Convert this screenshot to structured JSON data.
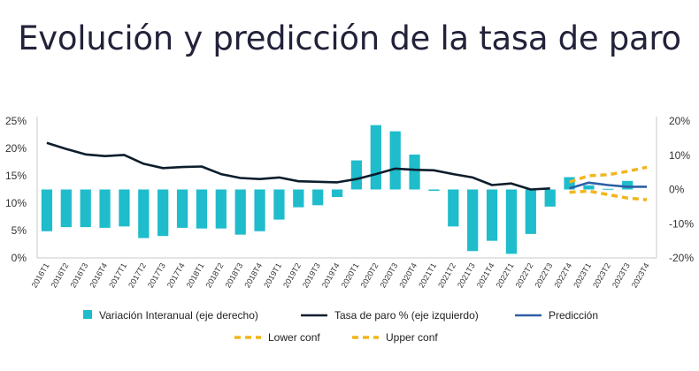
{
  "chart_data": {
    "type": "bar",
    "title": "Evolución y predicción de la tasa de paro",
    "categories": [
      "2016T1",
      "2016T2",
      "2016T3",
      "2016T4",
      "2017T1",
      "2017T2",
      "2017T3",
      "2017T4",
      "2018T1",
      "2018T2",
      "2018T3",
      "2018T4",
      "2019T1",
      "2019T2",
      "2019T3",
      "2019T4",
      "2020T1",
      "2020T2",
      "2020T3",
      "2020T4",
      "2021T1",
      "2021T2",
      "2021T3",
      "2021T4",
      "2022T1",
      "2022T2",
      "2022T3",
      "2022T4",
      "2023T1",
      "2023T2",
      "2023T3",
      "2023T4"
    ],
    "y_left": {
      "range": [
        0,
        25
      ],
      "ticks": [
        "0%",
        "5%",
        "10%",
        "15%",
        "20%",
        "25%"
      ]
    },
    "y_right": {
      "range": [
        -20,
        20
      ],
      "ticks": [
        "-20%",
        "-10%",
        "0%",
        "10%",
        "20%"
      ]
    },
    "series": [
      {
        "name": "Variación Interanual (eje derecho)",
        "type": "bar",
        "axis": "right",
        "color": "#1fbccc",
        "values": [
          -12.2,
          -11.0,
          -11.0,
          -11.2,
          -10.8,
          -14.2,
          -13.6,
          -11.2,
          -11.4,
          -11.4,
          -13.2,
          -12.2,
          -8.8,
          -5.2,
          -4.6,
          -2.2,
          8.5,
          18.8,
          17.0,
          10.2,
          -0.4,
          -10.8,
          -18.0,
          -15.0,
          -18.8,
          -13.0,
          -5.0,
          3.6,
          1.2,
          0.2,
          2.5,
          null
        ]
      },
      {
        "name": "Tasa de paro % (eje izquierdo)",
        "type": "line",
        "axis": "left",
        "color": "#0c1d2c",
        "values": [
          21.0,
          19.9,
          18.9,
          18.6,
          18.8,
          17.2,
          16.4,
          16.6,
          16.7,
          15.3,
          14.6,
          14.4,
          14.7,
          14.0,
          13.9,
          13.8,
          14.4,
          15.3,
          16.3,
          16.1,
          16.0,
          15.3,
          14.7,
          13.3,
          13.6,
          12.5,
          12.7,
          null,
          null,
          null,
          null,
          null
        ]
      },
      {
        "name": "Predicción",
        "type": "line",
        "axis": "right",
        "color": "#2d5fa6",
        "values": [
          null,
          null,
          null,
          null,
          null,
          null,
          null,
          null,
          null,
          null,
          null,
          null,
          null,
          null,
          null,
          null,
          null,
          null,
          null,
          null,
          null,
          null,
          null,
          null,
          null,
          null,
          null,
          0.3,
          2.0,
          1.3,
          0.8,
          0.8
        ]
      },
      {
        "name": "Lower conf",
        "type": "line",
        "axis": "right",
        "color": "#f2b51d",
        "dashed": true,
        "values": [
          null,
          null,
          null,
          null,
          null,
          null,
          null,
          null,
          null,
          null,
          null,
          null,
          null,
          null,
          null,
          null,
          null,
          null,
          null,
          null,
          null,
          null,
          null,
          null,
          null,
          null,
          null,
          -0.8,
          -0.5,
          -1.5,
          -2.5,
          -3.0
        ]
      },
      {
        "name": "Upper conf",
        "type": "line",
        "axis": "right",
        "color": "#f2b51d",
        "dashed": true,
        "values": [
          null,
          null,
          null,
          null,
          null,
          null,
          null,
          null,
          null,
          null,
          null,
          null,
          null,
          null,
          null,
          null,
          null,
          null,
          null,
          null,
          null,
          null,
          null,
          null,
          null,
          null,
          null,
          2.2,
          4.0,
          4.3,
          5.3,
          6.5
        ]
      }
    ],
    "legend_rows": [
      [
        "Variación Interanual (eje derecho)",
        "Tasa de paro % (eje izquierdo)",
        "Predicción"
      ],
      [
        "Lower conf",
        "Upper conf"
      ]
    ],
    "legend_position": "bottom",
    "grid": false
  }
}
